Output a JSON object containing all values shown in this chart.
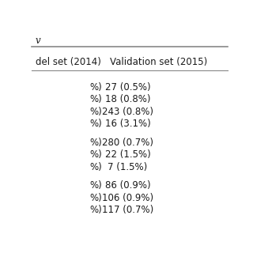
{
  "header_row": [
    "del set (2014)",
    "Validation set (2015)"
  ],
  "rows": [
    [
      "%)",
      "27 (0.5%)"
    ],
    [
      "%)",
      "18 (0.8%)"
    ],
    [
      "%)",
      "243 (0.8%)"
    ],
    [
      "%)",
      "16 (3.1%)"
    ],
    [
      "",
      ""
    ],
    [
      "%)",
      "280 (0.7%)"
    ],
    [
      "%)",
      "22 (1.5%)"
    ],
    [
      "%)",
      "7 (1.5%)"
    ],
    [
      "",
      ""
    ],
    [
      "%)",
      "86 (0.9%)"
    ],
    [
      "%)",
      "106 (0.9%)"
    ],
    [
      "%)",
      "117 (0.7%)"
    ]
  ],
  "font_size": 8.5,
  "header_font_size": 8.5,
  "bg_color": "#ffffff",
  "text_color": "#1a1a1a",
  "line_color": "#888888",
  "title_char": "v"
}
